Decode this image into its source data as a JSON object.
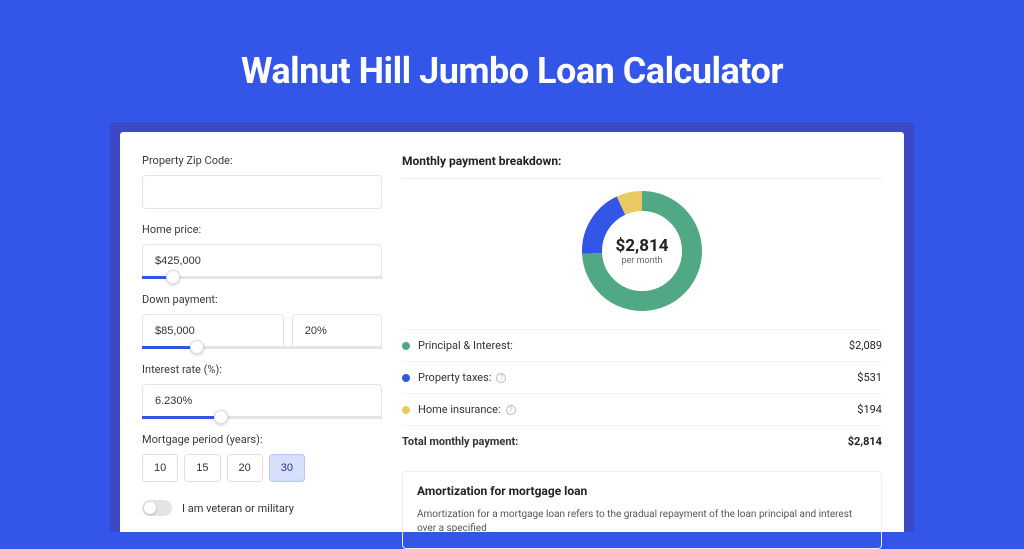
{
  "title": "Walnut Hill Jumbo Loan Calculator",
  "colors": {
    "page_bg": "#3356e8",
    "card_wrap_bg": "#3b49c7",
    "accent": "#3356e8",
    "principal": "#50a884",
    "taxes": "#3356e8",
    "insurance": "#e9c960"
  },
  "form": {
    "zip": {
      "label": "Property Zip Code:",
      "value": ""
    },
    "home_price": {
      "label": "Home price:",
      "value": "$425,000",
      "slider_fill_pct": 10,
      "thumb_pct": 10
    },
    "down_payment": {
      "label": "Down payment:",
      "amount": "$85,000",
      "pct": "20%",
      "slider_fill_pct": 20,
      "thumb_pct": 20
    },
    "interest": {
      "label": "Interest rate (%):",
      "value": "6.230%",
      "slider_fill_pct": 30,
      "thumb_pct": 30
    },
    "period": {
      "label": "Mortgage period (years):",
      "options": [
        "10",
        "15",
        "20",
        "30"
      ],
      "active_index": 3
    },
    "veteran": {
      "label": "I am veteran or military",
      "on": false
    }
  },
  "breakdown": {
    "heading": "Monthly payment breakdown:",
    "center": {
      "amount": "$2,814",
      "sub": "per month"
    },
    "donut": {
      "segments": [
        {
          "label": "Principal & Interest",
          "value": 2089,
          "color": "#50a884"
        },
        {
          "label": "Property taxes",
          "value": 531,
          "color": "#3356e8"
        },
        {
          "label": "Home insurance",
          "value": 194,
          "color": "#e9c960"
        }
      ],
      "stroke_width": 20
    },
    "rows": [
      {
        "label": "Principal & Interest:",
        "value": "$2,089",
        "color": "#50a884",
        "info": false
      },
      {
        "label": "Property taxes:",
        "value": "$531",
        "color": "#3356e8",
        "info": true
      },
      {
        "label": "Home insurance:",
        "value": "$194",
        "color": "#e9c960",
        "info": true
      }
    ],
    "total": {
      "label": "Total monthly payment:",
      "value": "$2,814"
    }
  },
  "amortization": {
    "title": "Amortization for mortgage loan",
    "text": "Amortization for a mortgage loan refers to the gradual repayment of the loan principal and interest over a specified"
  }
}
